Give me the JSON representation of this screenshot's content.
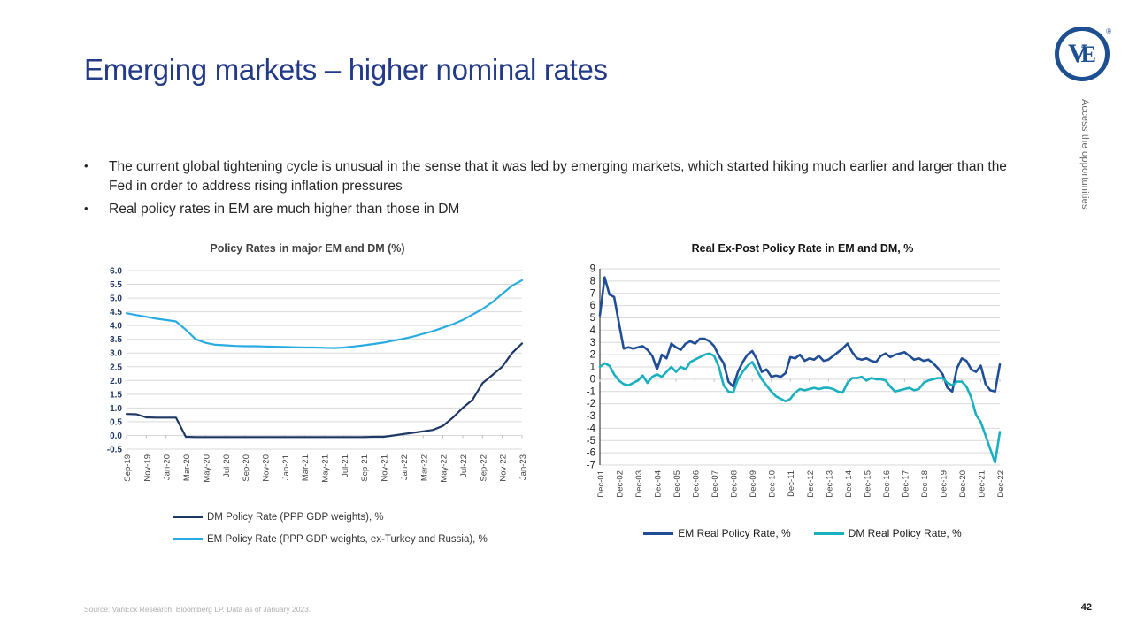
{
  "slide": {
    "title": "Emerging markets – higher nominal rates",
    "tagline": "Access the opportunities",
    "logo": {
      "v": "V",
      "e": "E",
      "registered": "®"
    },
    "bullets": [
      "The current global tightening cycle is unusual in the sense that it was led by emerging markets, which started hiking much earlier and larger than the Fed in order to address rising inflation pressures",
      "Real policy rates in EM are much higher than those in DM"
    ],
    "source_note": "Source: VanEck Research; Bloomberg LP. Data as of January 2023.",
    "page_number": "42"
  },
  "colors": {
    "title": "#223a87",
    "logo": "#1d4f91",
    "grid": "#d9d9d9",
    "zero_tick": "#bfbfbf",
    "right_axis_spine": "#404040"
  },
  "chart_data": [
    {
      "type": "line",
      "title": "Policy Rates in major EM and DM (%)",
      "xlabel": "",
      "ylabel": "",
      "ylim": [
        -0.5,
        6.0
      ],
      "ytick_step": 0.5,
      "ytick_decimals": 1,
      "grid": true,
      "legend_position": "bottom-left-stacked",
      "x_frequency": "monthly",
      "x_tick_labels": [
        "Sep-19",
        "Nov-19",
        "Jan-20",
        "Mar-20",
        "May-20",
        "Jul-20",
        "Sep-20",
        "Nov-20",
        "Jan-21",
        "Mar-21",
        "May-21",
        "Jul-21",
        "Sep-21",
        "Nov-21",
        "Jan-22",
        "Mar-22",
        "May-22",
        "Jul-22",
        "Sep-22",
        "Nov-22",
        "Jan-23"
      ],
      "series": [
        {
          "name": "DM Policy Rate (PPP GDP weights), %",
          "color": "#1f3864",
          "values": [
            0.78,
            0.77,
            0.66,
            0.65,
            0.65,
            0.65,
            -0.05,
            -0.06,
            -0.06,
            -0.06,
            -0.06,
            -0.06,
            -0.06,
            -0.06,
            -0.06,
            -0.06,
            -0.06,
            -0.06,
            -0.06,
            -0.06,
            -0.06,
            -0.06,
            -0.06,
            -0.06,
            -0.06,
            -0.05,
            -0.05,
            0.0,
            0.05,
            0.1,
            0.15,
            0.2,
            0.35,
            0.65,
            1.0,
            1.3,
            1.9,
            2.2,
            2.5,
            3.0,
            3.35
          ]
        },
        {
          "name": "EM Policy Rate (PPP GDP weights, ex-Turkey and Russia), %",
          "color": "#29abe2",
          "values": [
            4.45,
            4.38,
            4.32,
            4.25,
            4.2,
            4.15,
            3.85,
            3.5,
            3.37,
            3.3,
            3.28,
            3.26,
            3.25,
            3.25,
            3.24,
            3.23,
            3.22,
            3.21,
            3.2,
            3.2,
            3.19,
            3.18,
            3.2,
            3.24,
            3.28,
            3.33,
            3.38,
            3.45,
            3.52,
            3.6,
            3.7,
            3.8,
            3.92,
            4.05,
            4.2,
            4.4,
            4.6,
            4.85,
            5.15,
            5.45,
            5.65
          ]
        }
      ]
    },
    {
      "type": "line",
      "title": "Real Ex-Post Policy Rate in EM and DM, %",
      "xlabel": "",
      "ylabel": "",
      "ylim": [
        -7,
        9
      ],
      "ytick_step": 1,
      "ytick_decimals": 0,
      "grid": true,
      "legend_position": "bottom-center-row",
      "x_frequency": "quarterly",
      "x_tick_labels": [
        "Dec-01",
        "Dec-02",
        "Dec-03",
        "Dec-04",
        "Dec-05",
        "Dec-06",
        "Dec-07",
        "Dec-08",
        "Dec-09",
        "Dec-10",
        "Dec-11",
        "Dec-12",
        "Dec-13",
        "Dec-14",
        "Dec-15",
        "Dec-16",
        "Dec-17",
        "Dec-18",
        "Dec-19",
        "Dec-20",
        "Dec-21",
        "Dec-22"
      ],
      "series": [
        {
          "name": "EM Real Policy Rate, %",
          "color": "#1f4e96",
          "values": [
            5.2,
            8.3,
            6.9,
            6.7,
            4.6,
            2.5,
            2.6,
            2.5,
            2.6,
            2.7,
            2.4,
            1.9,
            0.8,
            2.0,
            1.7,
            2.9,
            2.6,
            2.4,
            2.9,
            3.1,
            2.9,
            3.3,
            3.3,
            3.1,
            2.7,
            1.9,
            1.3,
            -0.2,
            -0.6,
            0.6,
            1.4,
            2.0,
            2.3,
            1.6,
            0.6,
            0.8,
            0.2,
            0.3,
            0.2,
            0.5,
            1.8,
            1.7,
            2.0,
            1.5,
            1.7,
            1.6,
            1.9,
            1.5,
            1.6,
            1.9,
            2.2,
            2.5,
            2.9,
            2.2,
            1.7,
            1.6,
            1.7,
            1.5,
            1.4,
            1.9,
            2.1,
            1.8,
            2.0,
            2.1,
            2.2,
            1.9,
            1.6,
            1.7,
            1.5,
            1.6,
            1.3,
            0.9,
            0.4,
            -0.7,
            -1.0,
            0.9,
            1.7,
            1.5,
            0.8,
            0.6,
            1.1,
            -0.4,
            -0.9,
            -1.0,
            1.2
          ]
        },
        {
          "name": "DM Real Policy Rate, %",
          "color": "#1bb0bf",
          "values": [
            1.0,
            1.3,
            1.1,
            0.4,
            -0.1,
            -0.4,
            -0.5,
            -0.3,
            -0.1,
            0.3,
            -0.3,
            0.2,
            0.4,
            0.2,
            0.6,
            1.0,
            0.6,
            1.0,
            0.8,
            1.4,
            1.6,
            1.8,
            2.0,
            2.1,
            1.9,
            1.0,
            -0.5,
            -1.0,
            -1.1,
            0.0,
            0.6,
            1.1,
            1.4,
            0.7,
            0.0,
            -0.5,
            -1.0,
            -1.4,
            -1.6,
            -1.8,
            -1.6,
            -1.1,
            -0.8,
            -0.9,
            -0.8,
            -0.7,
            -0.8,
            -0.7,
            -0.7,
            -0.8,
            -1.0,
            -1.1,
            -0.3,
            0.1,
            0.1,
            0.2,
            -0.1,
            0.1,
            0.0,
            0.0,
            -0.1,
            -0.6,
            -1.0,
            -0.9,
            -0.8,
            -0.7,
            -0.9,
            -0.8,
            -0.3,
            -0.1,
            0.0,
            0.1,
            0.1,
            -0.3,
            -0.5,
            -0.2,
            -0.2,
            -0.6,
            -1.5,
            -2.9,
            -3.5,
            -4.6,
            -5.7,
            -6.8,
            -4.3
          ]
        }
      ]
    }
  ]
}
